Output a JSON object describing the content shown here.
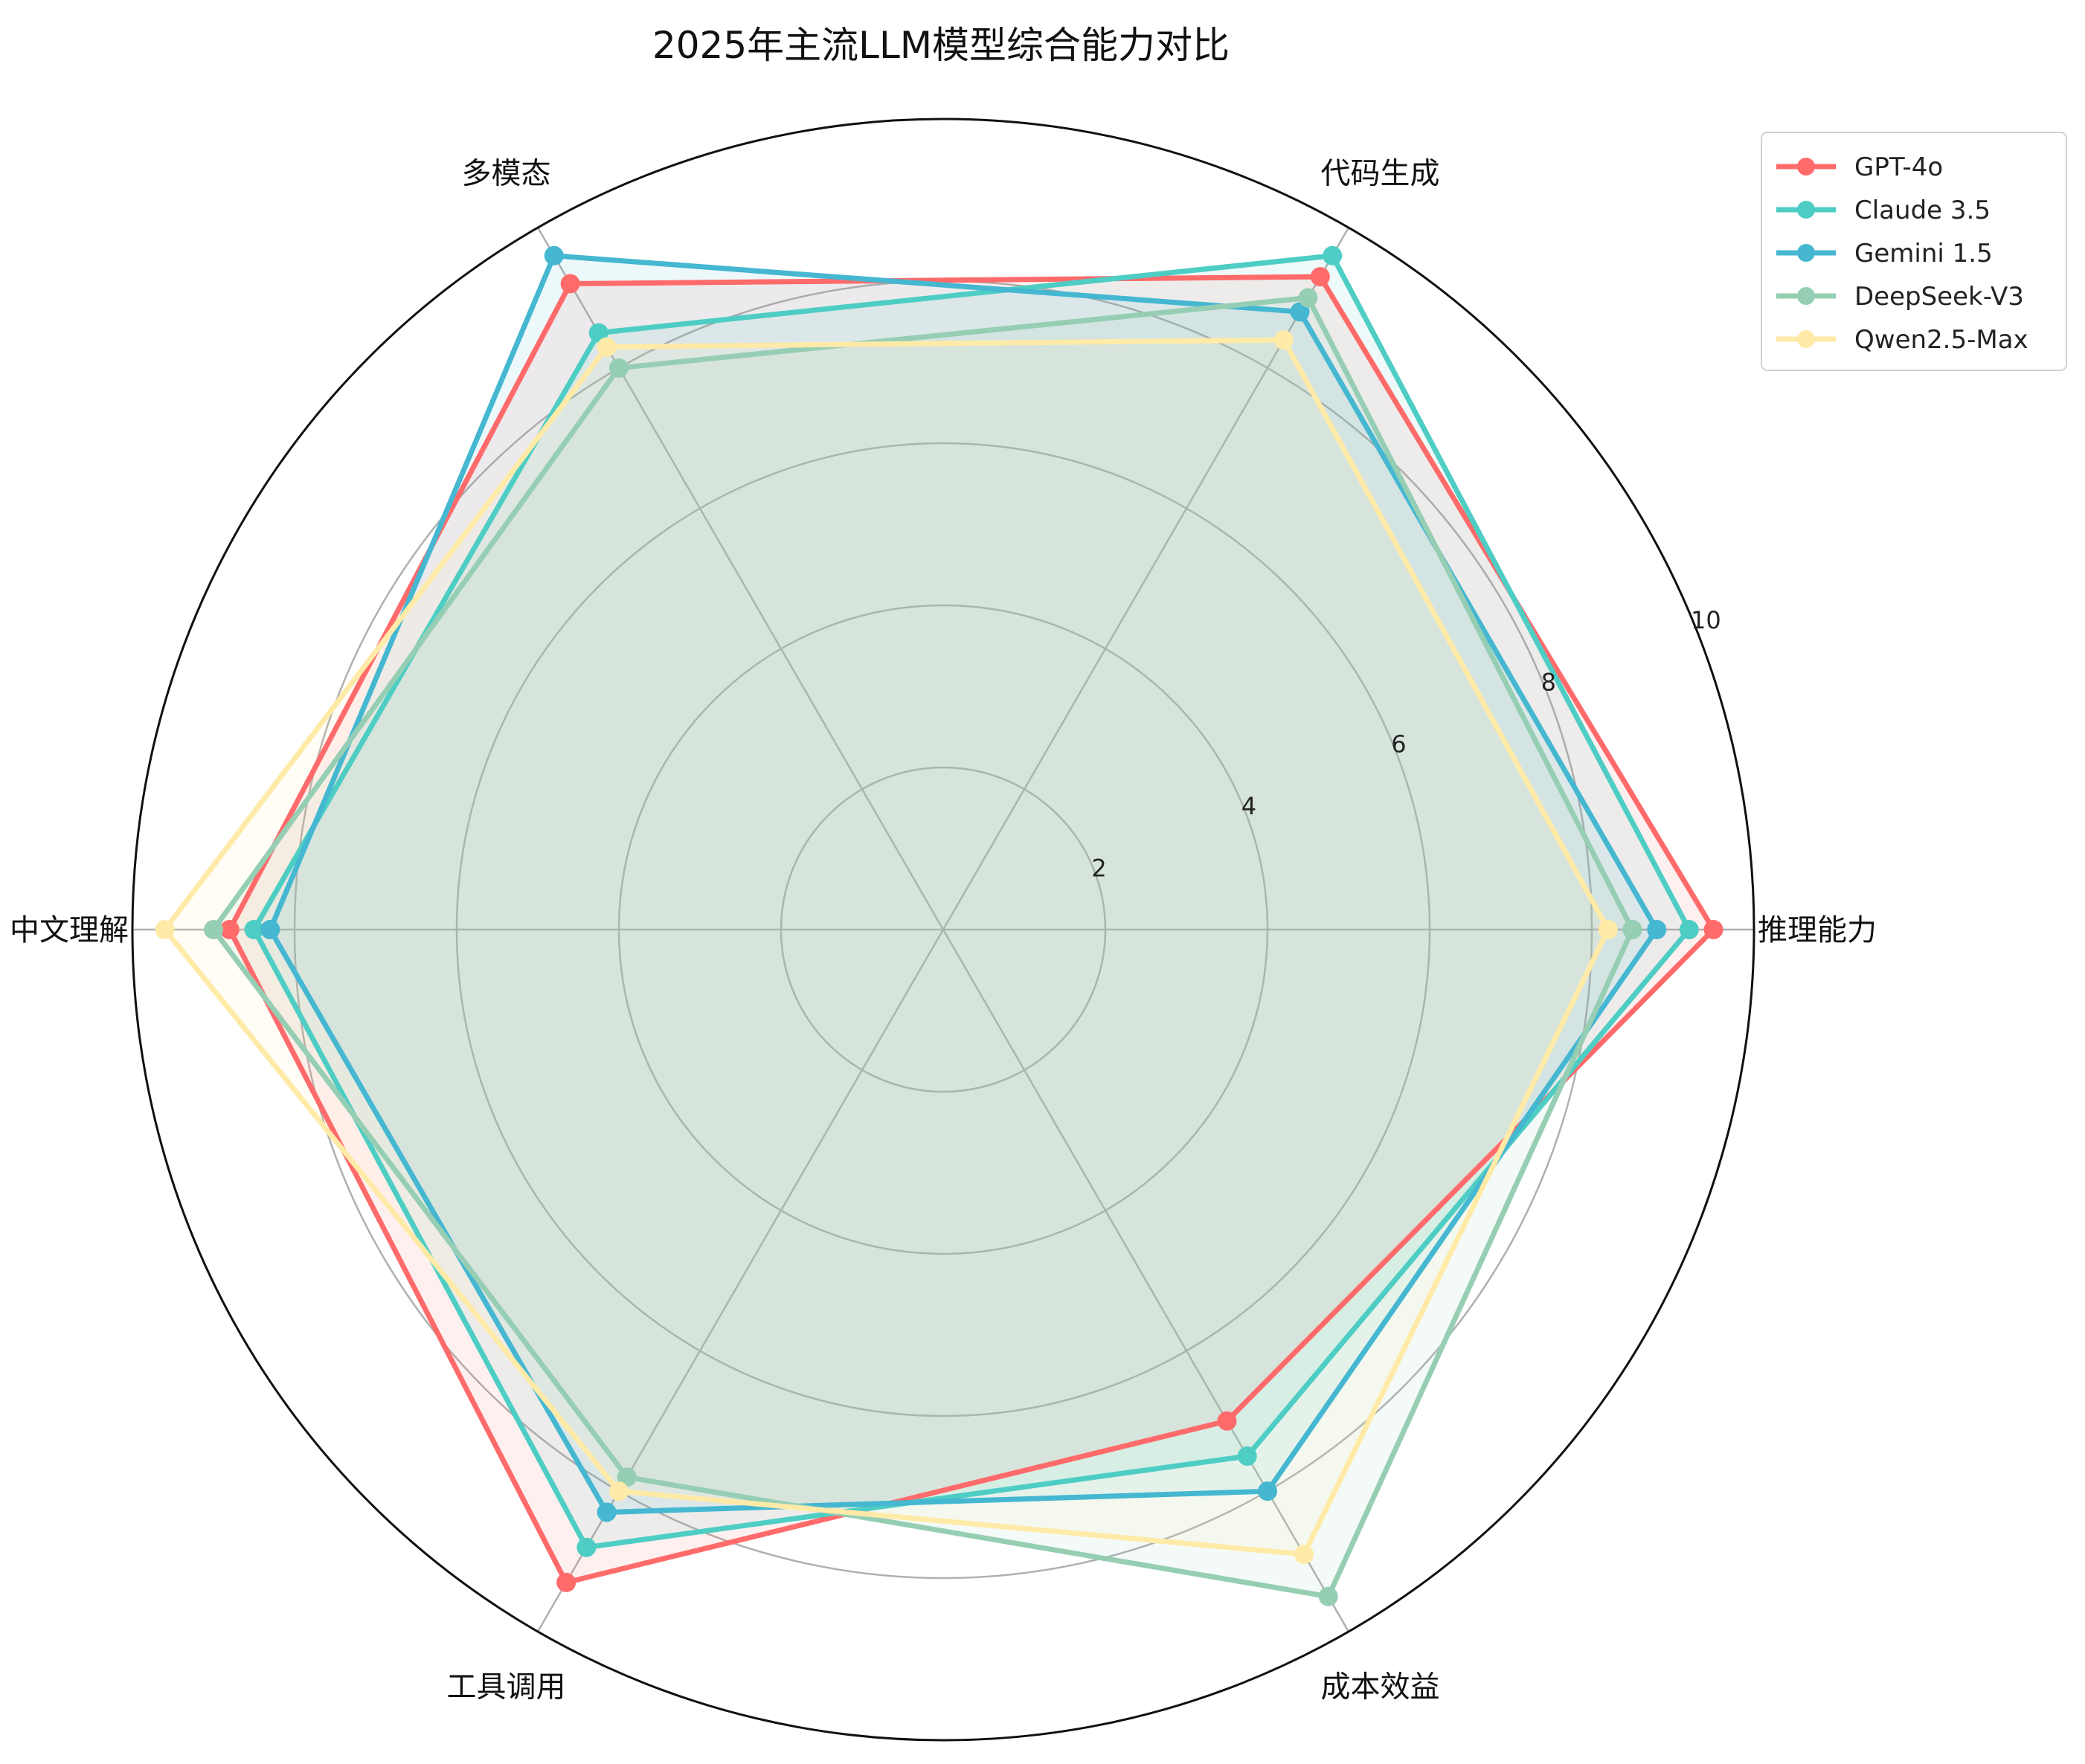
{
  "chart_data": {
    "type": "radar",
    "title": "2025年主流LLM模型综合能力对比",
    "categories": [
      "推理能力",
      "代码生成",
      "多模态",
      "中文理解",
      "工具调用",
      "成本效益"
    ],
    "radial_ticks": [
      2,
      4,
      6,
      8,
      10
    ],
    "rlim": [
      0,
      10
    ],
    "grid": true,
    "legend_position": "upper-right-outside",
    "series": [
      {
        "name": "GPT-4o",
        "values": [
          9.5,
          9.3,
          9.2,
          8.8,
          9.3,
          7.0
        ],
        "color": "#ff6b6b"
      },
      {
        "name": "Claude 3.5",
        "values": [
          9.2,
          9.6,
          8.5,
          8.5,
          8.8,
          7.5
        ],
        "color": "#4ecdc4"
      },
      {
        "name": "Gemini 1.5",
        "values": [
          8.8,
          8.8,
          9.6,
          8.3,
          8.3,
          8.0
        ],
        "color": "#45b7d1"
      },
      {
        "name": "DeepSeek-V3",
        "values": [
          8.5,
          9.0,
          8.0,
          9.0,
          7.8,
          9.5
        ],
        "color": "#96ceb4"
      },
      {
        "name": "Qwen2.5-Max",
        "values": [
          8.2,
          8.4,
          8.3,
          9.6,
          8.0,
          8.9
        ],
        "color": "#ffeaa7"
      }
    ]
  }
}
